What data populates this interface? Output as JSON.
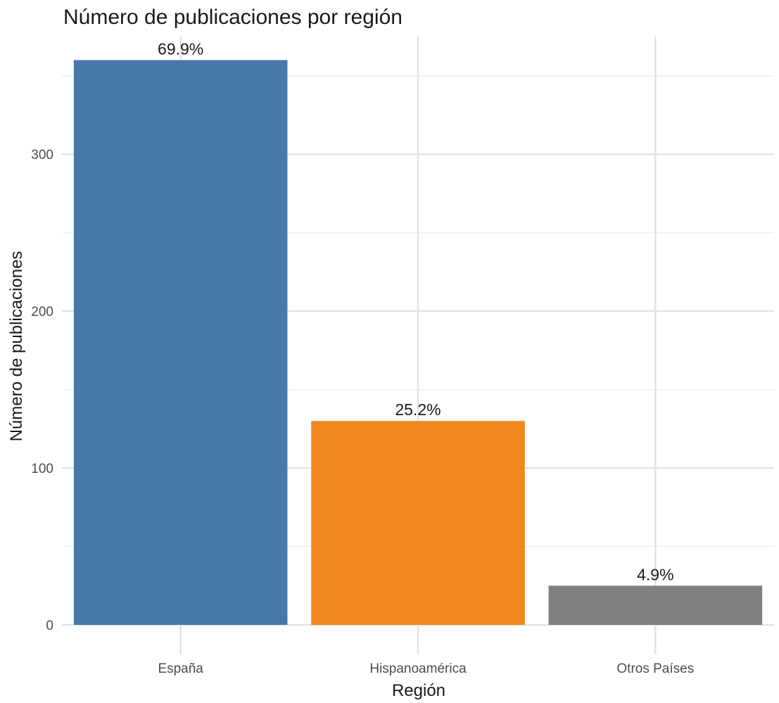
{
  "chart_data": {
    "type": "bar",
    "title": "Número de publicaciones por región",
    "xlabel": "Región",
    "ylabel": "Número de publicaciones",
    "categories": [
      "España",
      "Hispanoamérica",
      "Otros Países"
    ],
    "values": [
      360,
      130,
      25
    ],
    "data_labels": [
      "69.9%",
      "25.2%",
      "4.9%"
    ],
    "colors": [
      "#4679A8",
      "#F0881F",
      "#808080"
    ],
    "ylim": [
      0,
      375
    ],
    "yticks": [
      0,
      100,
      200,
      300
    ],
    "grid": true,
    "legend": "none"
  }
}
